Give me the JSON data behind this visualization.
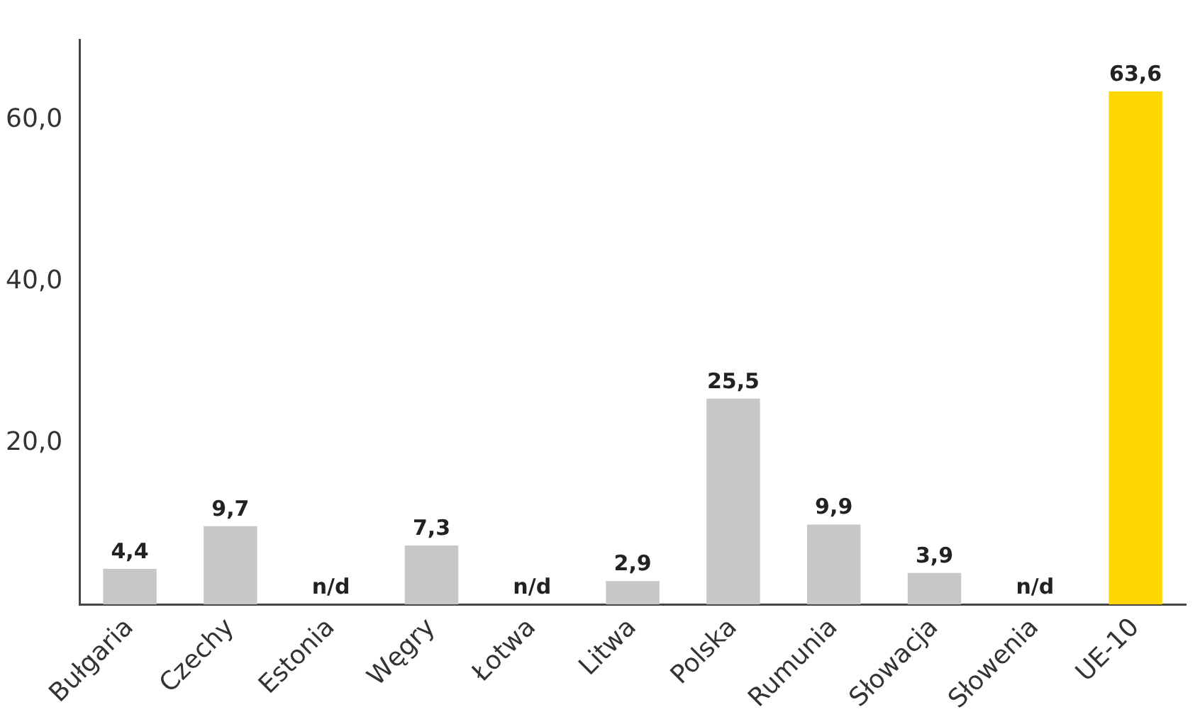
{
  "chart_data": {
    "type": "bar",
    "categories": [
      "Bułgaria",
      "Czechy",
      "Estonia",
      "Węgry",
      "Łotwa",
      "Litwa",
      "Polska",
      "Rumunia",
      "Słowacja",
      "Słowenia",
      "UE-10"
    ],
    "values": [
      4.4,
      9.7,
      null,
      7.3,
      null,
      2.9,
      25.5,
      9.9,
      3.9,
      null,
      63.6
    ],
    "value_labels": [
      "4,4",
      "9,7",
      "n/d",
      "7,3",
      "n/d",
      "2,9",
      "25,5",
      "9,9",
      "3,9",
      "n/d",
      "63,6"
    ],
    "colors": [
      "#c6c7c8",
      "#c6c7c8",
      "#c6c7c8",
      "#c6c7c8",
      "#c6c7c8",
      "#c6c7c8",
      "#c6c7c8",
      "#c6c7c8",
      "#c6c7c8",
      "#c6c7c8",
      "#ffd700"
    ],
    "ylim": [
      0,
      70
    ],
    "yticks": [
      {
        "value": 20,
        "label": "20,0"
      },
      {
        "value": 40,
        "label": "40,0"
      },
      {
        "value": 60,
        "label": "60,0"
      }
    ],
    "grid": false,
    "legend": false
  }
}
